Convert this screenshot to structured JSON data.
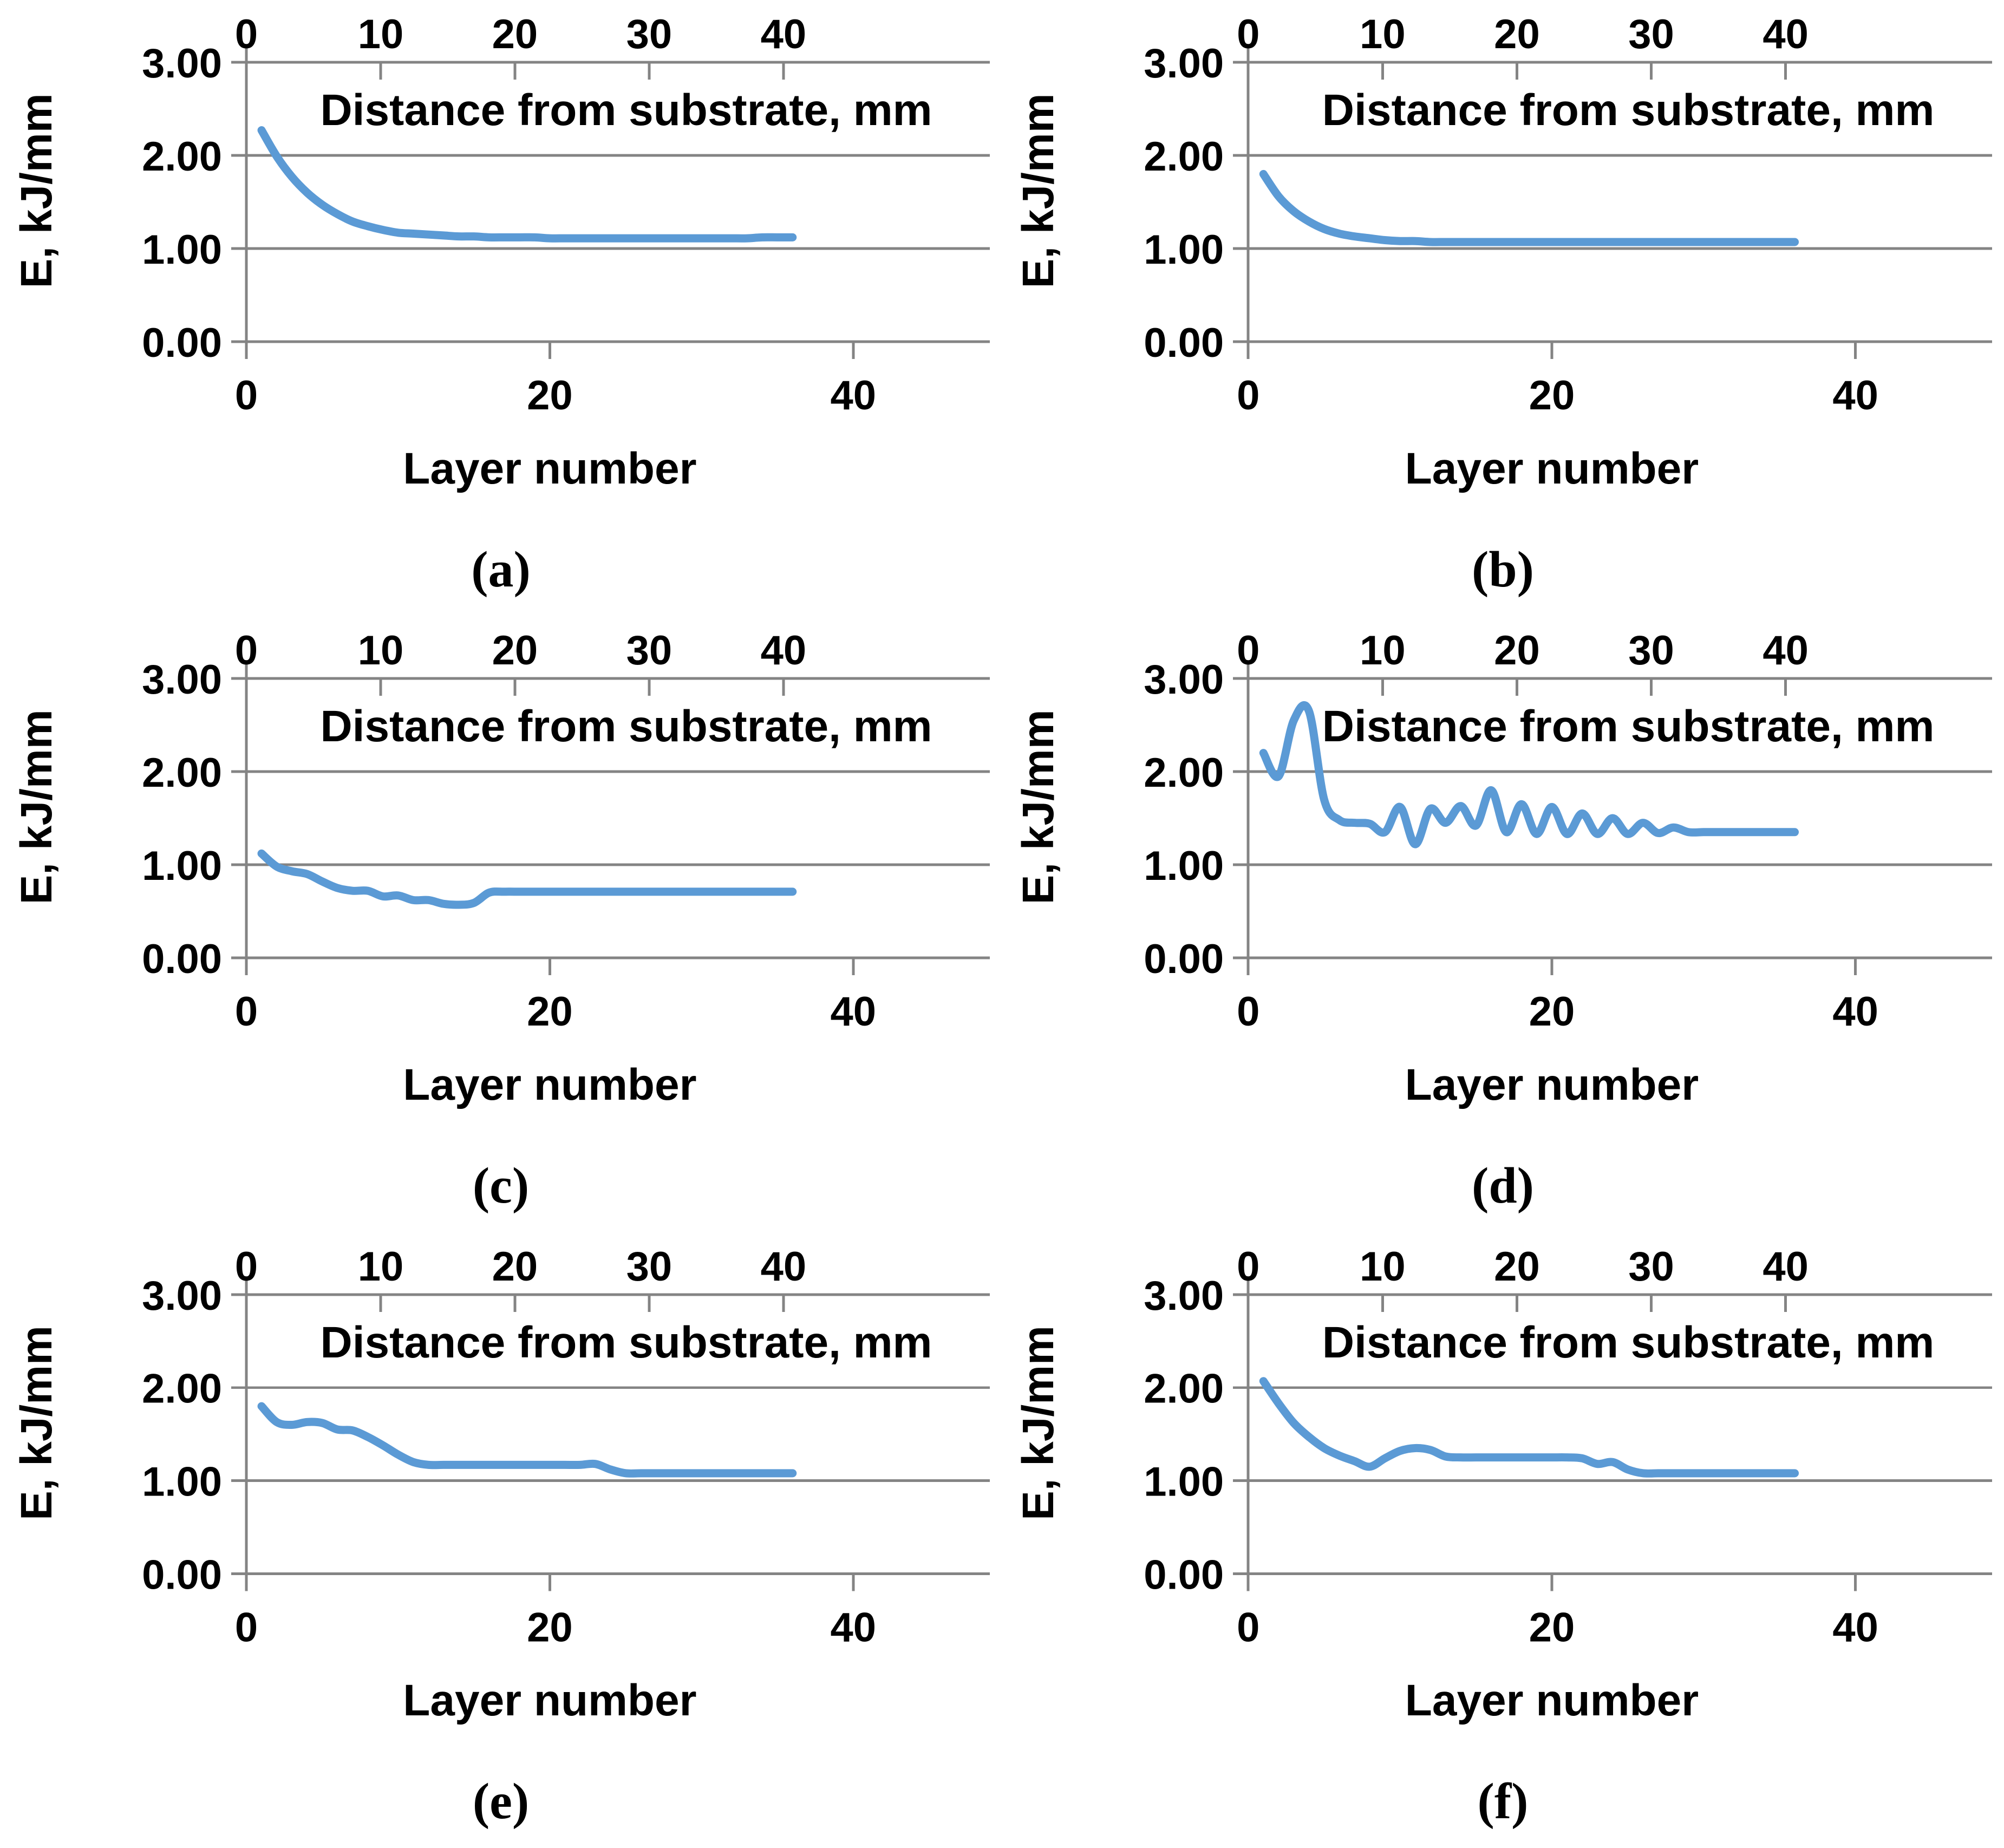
{
  "style": {
    "background": "#FFFFFF",
    "line_color": "#5B9AD5",
    "axis_color": "#848484",
    "text_color": "#000000"
  },
  "chart_data": [
    {
      "type": "line",
      "label": "(a)",
      "y_axis": {
        "label": "E, kJ/mm",
        "range": [
          0,
          3
        ],
        "ticks": [
          {
            "v": 3,
            "label": "3.00"
          },
          {
            "v": 2,
            "label": "2.00"
          },
          {
            "v": 1,
            "label": "1.00"
          },
          {
            "v": 0,
            "label": "0.00"
          }
        ]
      },
      "x_bottom_axis": {
        "label": "Layer number",
        "range": [
          0,
          49
        ],
        "ticks": [
          {
            "v": 0,
            "label": "0"
          },
          {
            "v": 20,
            "label": "20"
          },
          {
            "v": 40,
            "label": "40"
          }
        ]
      },
      "x_top_axis": {
        "label": "Distance from substrate, mm",
        "mm_per_layer": 1.13,
        "ticks": [
          {
            "v": 0,
            "label": "0"
          },
          {
            "v": 10,
            "label": "10"
          },
          {
            "v": 20,
            "label": "20"
          },
          {
            "v": 30,
            "label": "30"
          },
          {
            "v": 40,
            "label": "40"
          }
        ]
      },
      "series": {
        "x_start": 1,
        "y": [
          2.27,
          1.99,
          1.77,
          1.6,
          1.47,
          1.37,
          1.29,
          1.24,
          1.2,
          1.17,
          1.16,
          1.15,
          1.14,
          1.13,
          1.13,
          1.12,
          1.12,
          1.12,
          1.12,
          1.11,
          1.11,
          1.11,
          1.11,
          1.11,
          1.11,
          1.11,
          1.11,
          1.11,
          1.11,
          1.11,
          1.11,
          1.11,
          1.11,
          1.12,
          1.12,
          1.12
        ]
      }
    },
    {
      "type": "line",
      "label": "(b)",
      "y_axis": {
        "label": "E, kJ/mm",
        "range": [
          0,
          3
        ],
        "ticks": [
          {
            "v": 3,
            "label": "3.00"
          },
          {
            "v": 2,
            "label": "2.00"
          },
          {
            "v": 1,
            "label": "1.00"
          },
          {
            "v": 0,
            "label": "0.00"
          }
        ]
      },
      "x_bottom_axis": {
        "label": "Layer number",
        "range": [
          0,
          49
        ],
        "ticks": [
          {
            "v": 0,
            "label": "0"
          },
          {
            "v": 20,
            "label": "20"
          },
          {
            "v": 40,
            "label": "40"
          }
        ]
      },
      "x_top_axis": {
        "label": "Distance from substrate, mm",
        "mm_per_layer": 1.13,
        "ticks": [
          {
            "v": 0,
            "label": "0"
          },
          {
            "v": 10,
            "label": "10"
          },
          {
            "v": 20,
            "label": "20"
          },
          {
            "v": 30,
            "label": "30"
          },
          {
            "v": 40,
            "label": "40"
          }
        ]
      },
      "series": {
        "x_start": 1,
        "y": [
          1.8,
          1.56,
          1.4,
          1.29,
          1.21,
          1.16,
          1.13,
          1.11,
          1.09,
          1.08,
          1.08,
          1.07,
          1.07,
          1.07,
          1.07,
          1.07,
          1.07,
          1.07,
          1.07,
          1.07,
          1.07,
          1.07,
          1.07,
          1.07,
          1.07,
          1.07,
          1.07,
          1.07,
          1.07,
          1.07,
          1.07,
          1.07,
          1.07,
          1.07,
          1.07,
          1.07
        ]
      }
    },
    {
      "type": "line",
      "label": "(c)",
      "y_axis": {
        "label": "E, kJ/mm",
        "range": [
          0,
          3
        ],
        "ticks": [
          {
            "v": 3,
            "label": "3.00"
          },
          {
            "v": 2,
            "label": "2.00"
          },
          {
            "v": 1,
            "label": "1.00"
          },
          {
            "v": 0,
            "label": "0.00"
          }
        ]
      },
      "x_bottom_axis": {
        "label": "Layer number",
        "range": [
          0,
          49
        ],
        "ticks": [
          {
            "v": 0,
            "label": "0"
          },
          {
            "v": 20,
            "label": "20"
          },
          {
            "v": 40,
            "label": "40"
          }
        ]
      },
      "x_top_axis": {
        "label": "Distance from substrate, mm",
        "mm_per_layer": 1.13,
        "ticks": [
          {
            "v": 0,
            "label": "0"
          },
          {
            "v": 10,
            "label": "10"
          },
          {
            "v": 20,
            "label": "20"
          },
          {
            "v": 30,
            "label": "30"
          },
          {
            "v": 40,
            "label": "40"
          }
        ]
      },
      "series": {
        "x_start": 1,
        "y": [
          1.12,
          0.98,
          0.93,
          0.9,
          0.82,
          0.75,
          0.72,
          0.72,
          0.66,
          0.67,
          0.62,
          0.62,
          0.58,
          0.57,
          0.59,
          0.7,
          0.71,
          0.71,
          0.71,
          0.71,
          0.71,
          0.71,
          0.71,
          0.71,
          0.71,
          0.71,
          0.71,
          0.71,
          0.71,
          0.71,
          0.71,
          0.71,
          0.71,
          0.71,
          0.71,
          0.71
        ]
      }
    },
    {
      "type": "line",
      "label": "(d)",
      "y_axis": {
        "label": "E, kJ/mm",
        "range": [
          0,
          3
        ],
        "ticks": [
          {
            "v": 3,
            "label": "3.00"
          },
          {
            "v": 2,
            "label": "2.00"
          },
          {
            "v": 1,
            "label": "1.00"
          },
          {
            "v": 0,
            "label": "0.00"
          }
        ]
      },
      "x_bottom_axis": {
        "label": "Layer number",
        "range": [
          0,
          49
        ],
        "ticks": [
          {
            "v": 0,
            "label": "0"
          },
          {
            "v": 20,
            "label": "20"
          },
          {
            "v": 40,
            "label": "40"
          }
        ]
      },
      "x_top_axis": {
        "label": "Distance from substrate, mm",
        "mm_per_layer": 1.13,
        "ticks": [
          {
            "v": 0,
            "label": "0"
          },
          {
            "v": 10,
            "label": "10"
          },
          {
            "v": 20,
            "label": "20"
          },
          {
            "v": 30,
            "label": "30"
          },
          {
            "v": 40,
            "label": "40"
          }
        ]
      },
      "series": {
        "x_start": 1,
        "y": [
          2.2,
          1.95,
          2.55,
          2.65,
          1.7,
          1.48,
          1.45,
          1.44,
          1.35,
          1.62,
          1.22,
          1.6,
          1.45,
          1.63,
          1.42,
          1.8,
          1.35,
          1.65,
          1.33,
          1.62,
          1.33,
          1.55,
          1.33,
          1.5,
          1.33,
          1.45,
          1.34,
          1.4,
          1.35,
          1.35,
          1.35,
          1.35,
          1.35,
          1.35,
          1.35,
          1.35
        ]
      }
    },
    {
      "type": "line",
      "label": "(e)",
      "y_axis": {
        "label": "E, kJ/mm",
        "range": [
          0,
          3
        ],
        "ticks": [
          {
            "v": 3,
            "label": "3.00"
          },
          {
            "v": 2,
            "label": "2.00"
          },
          {
            "v": 1,
            "label": "1.00"
          },
          {
            "v": 0,
            "label": "0.00"
          }
        ]
      },
      "x_bottom_axis": {
        "label": "Layer number",
        "range": [
          0,
          49
        ],
        "ticks": [
          {
            "v": 0,
            "label": "0"
          },
          {
            "v": 20,
            "label": "20"
          },
          {
            "v": 40,
            "label": "40"
          }
        ]
      },
      "x_top_axis": {
        "label": "Distance from substrate, mm",
        "mm_per_layer": 1.13,
        "ticks": [
          {
            "v": 0,
            "label": "0"
          },
          {
            "v": 10,
            "label": "10"
          },
          {
            "v": 20,
            "label": "20"
          },
          {
            "v": 30,
            "label": "30"
          },
          {
            "v": 40,
            "label": "40"
          }
        ]
      },
      "series": {
        "x_start": 1,
        "y": [
          1.8,
          1.63,
          1.6,
          1.63,
          1.62,
          1.55,
          1.54,
          1.47,
          1.38,
          1.28,
          1.2,
          1.17,
          1.17,
          1.17,
          1.17,
          1.17,
          1.17,
          1.17,
          1.17,
          1.17,
          1.17,
          1.17,
          1.18,
          1.12,
          1.08,
          1.08,
          1.08,
          1.08,
          1.08,
          1.08,
          1.08,
          1.08,
          1.08,
          1.08,
          1.08,
          1.08
        ]
      }
    },
    {
      "type": "line",
      "label": "(f)",
      "y_axis": {
        "label": "E, kJ/mm",
        "range": [
          0,
          3
        ],
        "ticks": [
          {
            "v": 3,
            "label": "3.00"
          },
          {
            "v": 2,
            "label": "2.00"
          },
          {
            "v": 1,
            "label": "1.00"
          },
          {
            "v": 0,
            "label": "0.00"
          }
        ]
      },
      "x_bottom_axis": {
        "label": "Layer number",
        "range": [
          0,
          49
        ],
        "ticks": [
          {
            "v": 0,
            "label": "0"
          },
          {
            "v": 20,
            "label": "20"
          },
          {
            "v": 40,
            "label": "40"
          }
        ]
      },
      "x_top_axis": {
        "label": "Distance from substrate, mm",
        "mm_per_layer": 1.13,
        "ticks": [
          {
            "v": 0,
            "label": "0"
          },
          {
            "v": 10,
            "label": "10"
          },
          {
            "v": 20,
            "label": "20"
          },
          {
            "v": 30,
            "label": "30"
          },
          {
            "v": 40,
            "label": "40"
          }
        ]
      },
      "series": {
        "x_start": 1,
        "y": [
          2.07,
          1.83,
          1.62,
          1.47,
          1.35,
          1.27,
          1.21,
          1.15,
          1.24,
          1.32,
          1.35,
          1.33,
          1.26,
          1.25,
          1.25,
          1.25,
          1.25,
          1.25,
          1.25,
          1.25,
          1.25,
          1.24,
          1.18,
          1.2,
          1.12,
          1.08,
          1.08,
          1.08,
          1.08,
          1.08,
          1.08,
          1.08,
          1.08,
          1.08,
          1.08,
          1.08
        ]
      }
    }
  ]
}
